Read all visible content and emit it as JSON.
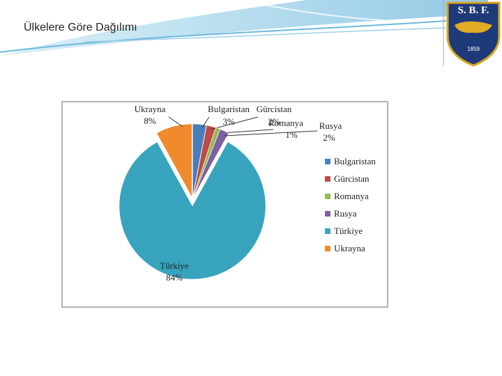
{
  "slide": {
    "title": "Ülkelere Göre Dağılımı",
    "logo": {
      "text": "S. B. F.",
      "year": "1859"
    }
  },
  "chart_data": {
    "type": "pie",
    "categories": [
      "Bulgaristan",
      "Gürcistan",
      "Romanya",
      "Rusya",
      "Türkiye",
      "Ukrayna"
    ],
    "values": [
      3,
      2,
      1,
      2,
      84,
      8
    ],
    "value_labels": [
      "3%",
      "2%",
      "1%",
      "2%",
      "84%",
      "8%"
    ],
    "colors": [
      "#4a7ebb",
      "#be4b48",
      "#98b954",
      "#7d60a0",
      "#38a3bd",
      "#f08a2c"
    ],
    "legend": "right"
  }
}
